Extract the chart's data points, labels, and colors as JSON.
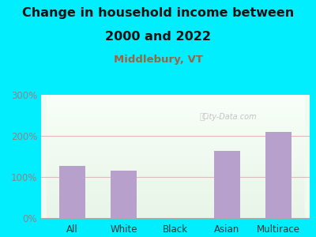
{
  "title_line1": "Change in household income between",
  "title_line2": "2000 and 2022",
  "subtitle": "Middlebury, VT",
  "categories": [
    "All",
    "White",
    "Black",
    "Asian",
    "Multirace"
  ],
  "values": [
    127,
    116,
    0,
    163,
    210
  ],
  "bar_color": "#b8a0cc",
  "title_fontsize": 11.5,
  "subtitle_fontsize": 9.5,
  "subtitle_color": "#996644",
  "title_color": "#111111",
  "tick_label_fontsize": 8.5,
  "ylim": [
    0,
    300
  ],
  "yticks": [
    0,
    100,
    200,
    300
  ],
  "ytick_labels": [
    "0%",
    "100%",
    "200%",
    "300%"
  ],
  "outer_bg": "#00eeff",
  "watermark": "City-Data.com",
  "grid_color": "#ddbbbb",
  "grid_linewidth": 0.8,
  "tick_color": "#888888"
}
